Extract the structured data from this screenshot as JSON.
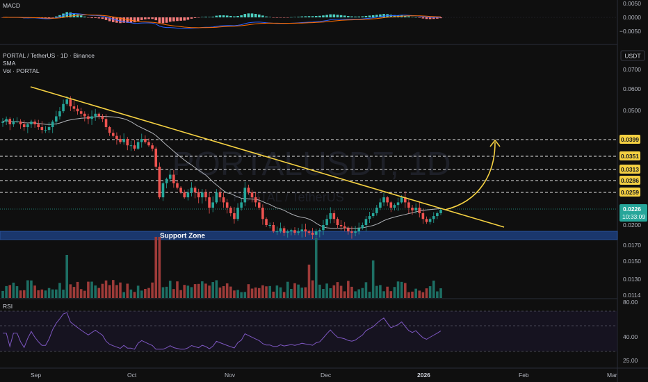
{
  "header": {
    "symbol_line": "PORTAL / TetherUS · 1D · Binance",
    "indicator_sma": "SMA",
    "indicator_vol": "Vol · PORTAL",
    "currency": "USDT",
    "watermark": "PORTALUSDT, 1D",
    "watermark_sub": "PORTAL / TetherUS"
  },
  "macd": {
    "label": "MACD",
    "ticks": [
      "0.0050",
      "0.0000",
      "−0.0050"
    ]
  },
  "rsi": {
    "label": "RSI",
    "ticks": [
      "80.00",
      "40.00",
      "25.00"
    ]
  },
  "price_axis": {
    "ticks": [
      "0.0700",
      "0.0600",
      "0.0500",
      "0.0200",
      "0.0170",
      "0.0150",
      "0.0130",
      "0.0114"
    ]
  },
  "price_tags": {
    "levels": [
      "0.0399",
      "0.0351",
      "0.0313",
      "0.0286",
      "0.0259"
    ],
    "current": "0.0226",
    "countdown": "10:33:09"
  },
  "annotations": {
    "support_zone": "Support Zone"
  },
  "time_axis": {
    "labels": [
      "Sep",
      "Oct",
      "Nov",
      "Dec",
      "2026",
      "Feb",
      "Mar"
    ]
  },
  "chart_data": {
    "type": "candlestick",
    "price_scale": "log",
    "resistance_levels": [
      0.0399,
      0.0351,
      0.0313,
      0.0286,
      0.0259
    ],
    "current_price": 0.0226,
    "support_zone": [
      0.0183,
      0.019
    ],
    "closes_est": [
      0.046,
      0.047,
      0.045,
      0.046,
      0.046,
      0.045,
      0.044,
      0.045,
      0.046,
      0.045,
      0.044,
      0.043,
      0.043,
      0.044,
      0.046,
      0.048,
      0.05,
      0.053,
      0.055,
      0.052,
      0.051,
      0.05,
      0.049,
      0.048,
      0.047,
      0.048,
      0.049,
      0.048,
      0.047,
      0.044,
      0.042,
      0.041,
      0.04,
      0.039,
      0.04,
      0.038,
      0.038,
      0.037,
      0.039,
      0.04,
      0.039,
      0.038,
      0.037,
      0.032,
      0.025,
      0.028,
      0.029,
      0.03,
      0.028,
      0.027,
      0.026,
      0.025,
      0.026,
      0.027,
      0.026,
      0.025,
      0.026,
      0.025,
      0.023,
      0.024,
      0.026,
      0.025,
      0.024,
      0.023,
      0.022,
      0.021,
      0.023,
      0.024,
      0.027,
      0.026,
      0.025,
      0.024,
      0.023,
      0.021,
      0.02,
      0.02,
      0.019,
      0.019,
      0.0195,
      0.0188,
      0.019,
      0.0192,
      0.0188,
      0.019,
      0.0193,
      0.019,
      0.0188,
      0.0185,
      0.019,
      0.0192,
      0.02,
      0.021,
      0.022,
      0.021,
      0.02,
      0.0198,
      0.0195,
      0.019,
      0.0188,
      0.019,
      0.0195,
      0.02,
      0.021,
      0.0215,
      0.022,
      0.023,
      0.024,
      0.025,
      0.024,
      0.023,
      0.0235,
      0.024,
      0.025,
      0.024,
      0.023,
      0.0225,
      0.023,
      0.022,
      0.021,
      0.0205,
      0.021,
      0.0215,
      0.022,
      0.0226
    ]
  }
}
